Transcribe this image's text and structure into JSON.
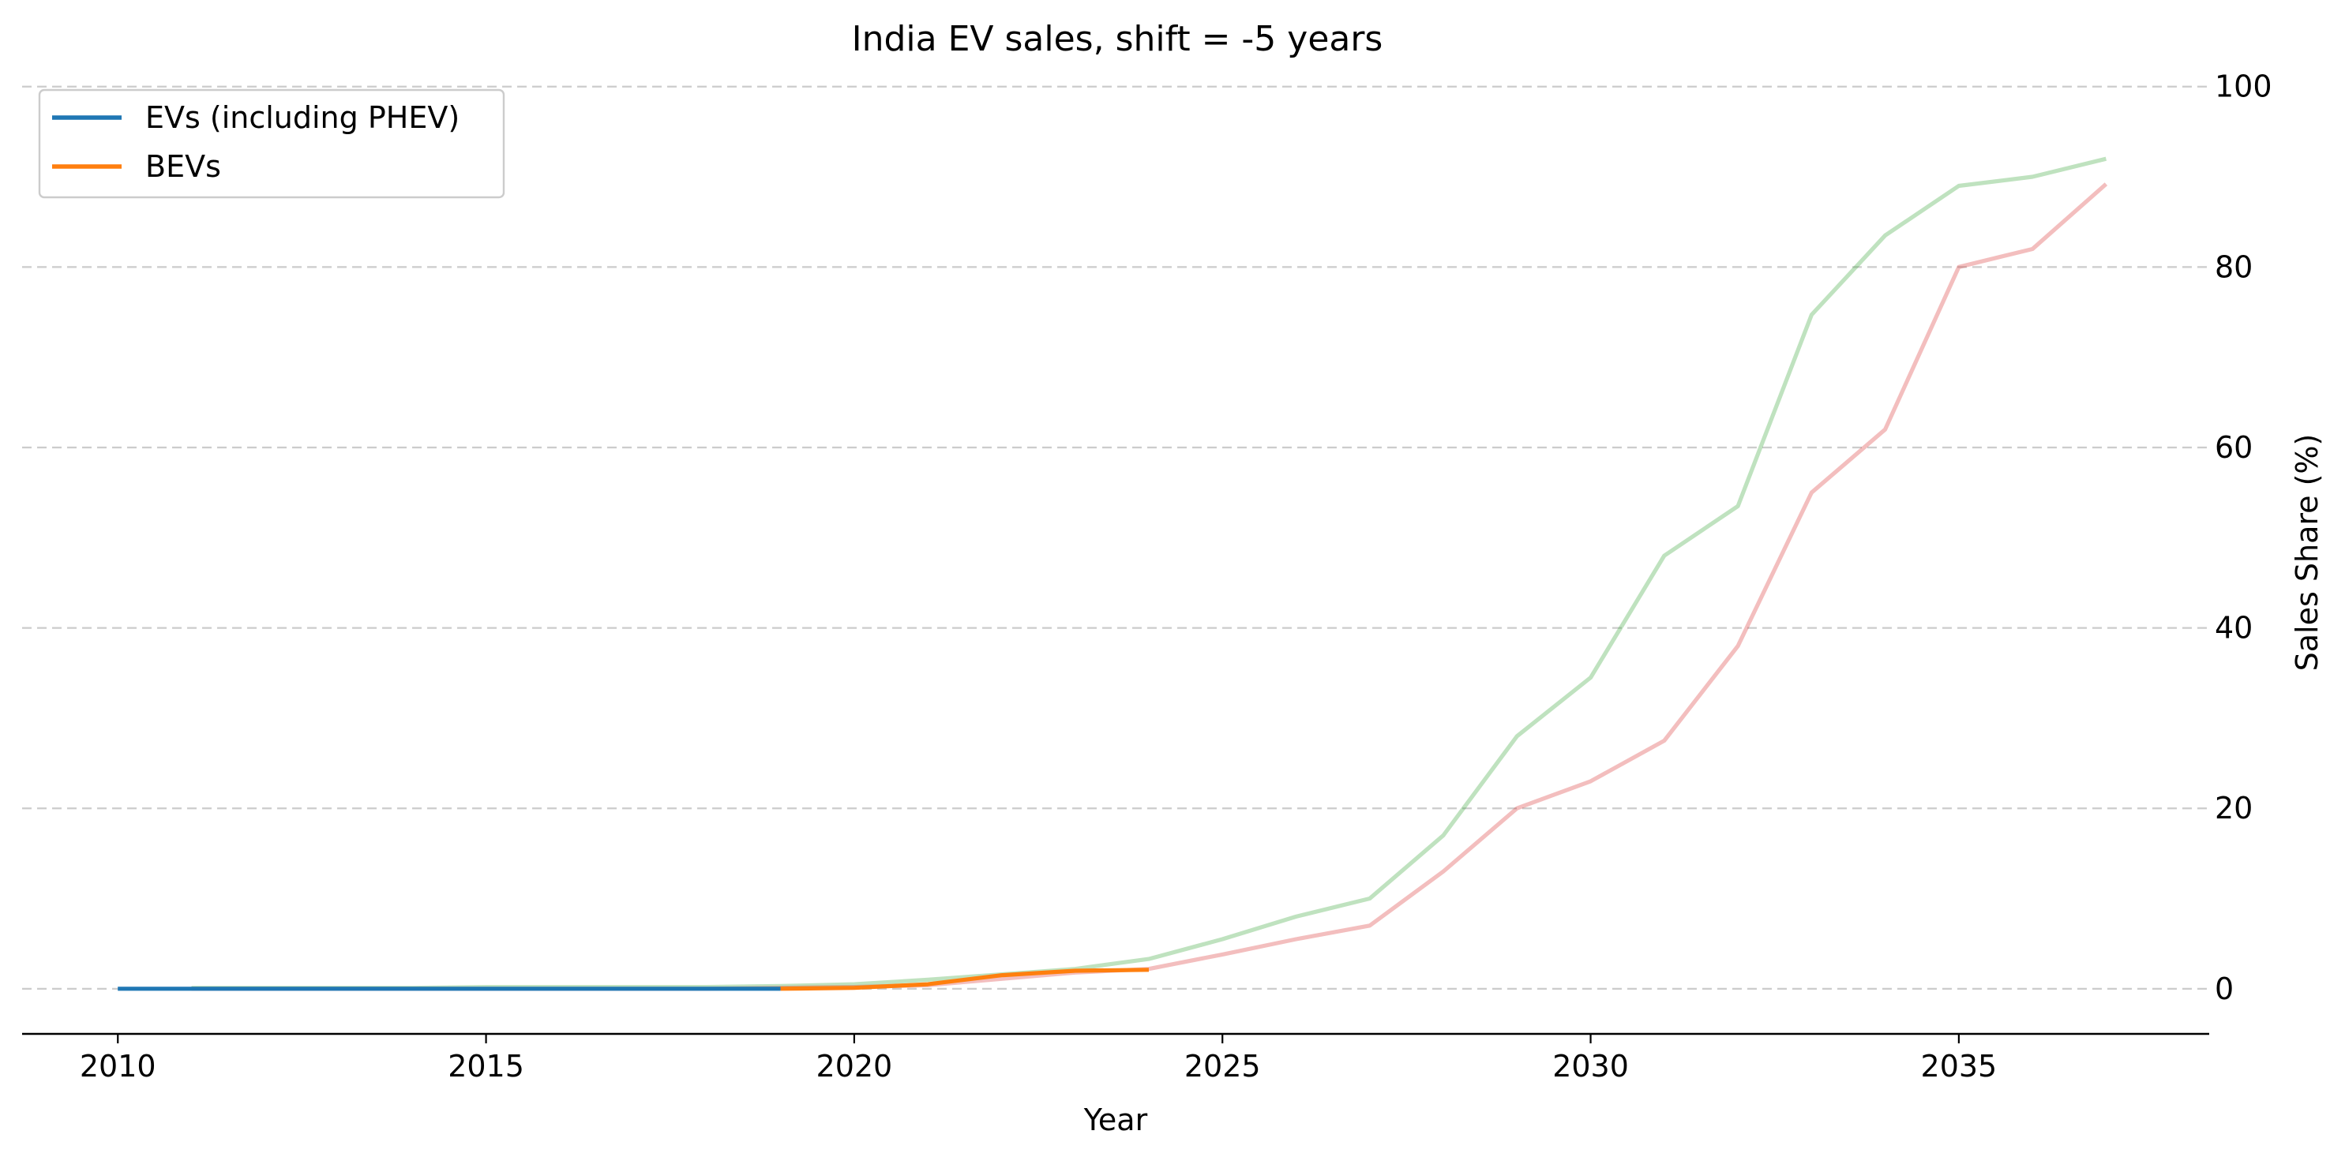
{
  "chart_data": {
    "type": "line",
    "title": "India EV sales, shift = -5 years",
    "xlabel": "Year",
    "ylabel": "Sales Share (%)",
    "xlim": [
      2008.7,
      2038.4
    ],
    "ylim": [
      -5,
      104
    ],
    "x_ticks": [
      2010,
      2015,
      2020,
      2025,
      2030,
      2035
    ],
    "y_ticks": [
      0,
      20,
      40,
      60,
      80,
      100
    ],
    "y_axis_side": "right",
    "grid": "horizontal dashed",
    "legend_position": "top-left",
    "series": [
      {
        "name": "EVs (including PHEV)",
        "color": "#1f77b4",
        "alpha": 1,
        "x": [
          2010,
          2011,
          2012,
          2013,
          2014,
          2015,
          2016,
          2017,
          2018,
          2019
        ],
        "y": [
          0.0,
          0.0,
          0.0,
          0.0,
          0.0,
          0.0,
          0.0,
          0.0,
          0.0,
          0.0
        ]
      },
      {
        "name": "BEVs",
        "color": "#ff7f0e",
        "alpha": 1,
        "x": [
          2019,
          2020,
          2021,
          2022,
          2023,
          2024
        ],
        "y": [
          0.0,
          0.1,
          0.5,
          1.5,
          2.0,
          2.1
        ]
      },
      {
        "color": "#2ca02c",
        "alpha": 0.3,
        "x": [
          2011,
          2012,
          2013,
          2014,
          2015,
          2016,
          2017,
          2018,
          2019,
          2020,
          2021,
          2022,
          2023,
          2024,
          2025,
          2026,
          2027,
          2028,
          2029,
          2030,
          2031,
          2032,
          2033,
          2034,
          2035,
          2036,
          2037
        ],
        "y": [
          0.1,
          0.1,
          0.1,
          0.1,
          0.2,
          0.2,
          0.2,
          0.2,
          0.3,
          0.5,
          1.0,
          1.6,
          2.2,
          3.3,
          5.5,
          8.0,
          10.0,
          17.0,
          28.0,
          34.5,
          48.0,
          53.5,
          74.7,
          83.5,
          89.0,
          90.0,
          92.0
        ]
      },
      {
        "color": "#d62728",
        "alpha": 0.3,
        "x": [
          2011,
          2012,
          2013,
          2014,
          2015,
          2016,
          2017,
          2018,
          2019,
          2020,
          2021,
          2022,
          2023,
          2024,
          2025,
          2026,
          2027,
          2028,
          2029,
          2030,
          2031,
          2032,
          2033,
          2034,
          2035,
          2036,
          2037
        ],
        "y": [
          0.0,
          0.0,
          0.0,
          0.0,
          0.0,
          0.0,
          0.0,
          0.0,
          0.1,
          0.2,
          0.4,
          1.1,
          1.8,
          2.2,
          3.8,
          5.5,
          7.0,
          13.0,
          20.0,
          23.0,
          27.5,
          38.0,
          55.0,
          62.0,
          80.0,
          82.0,
          89.2
        ]
      }
    ]
  }
}
